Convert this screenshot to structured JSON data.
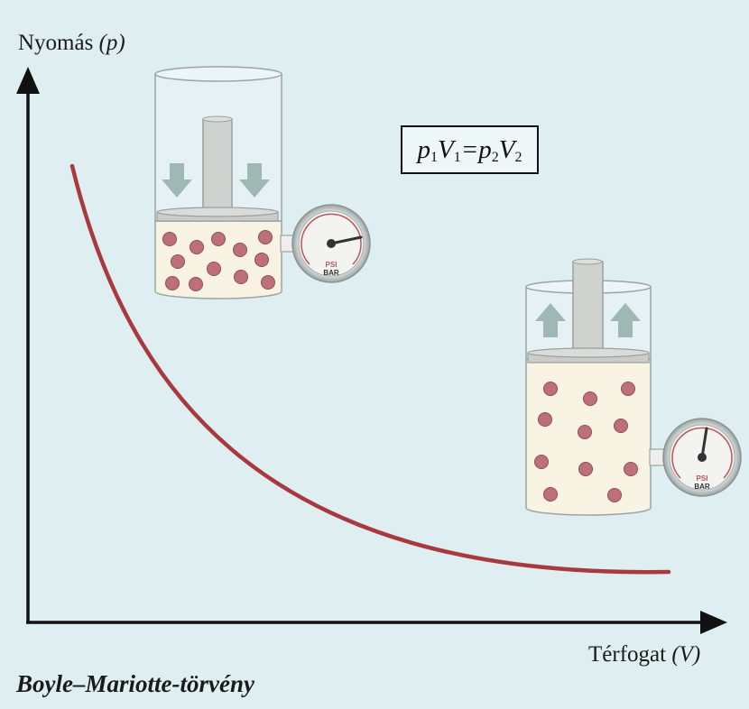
{
  "y_axis_label": {
    "text": "Nyomás",
    "var": "(p)"
  },
  "x_axis_label": {
    "text": "Térfogat",
    "var": "(V)"
  },
  "title": "Boyle–Mariotte-törvény",
  "formula": {
    "p1": "p",
    "s1": "1",
    "v1": "V",
    "s2": "1",
    "eq": "=",
    "p2": "p",
    "s3": "2",
    "v2": "V",
    "s4": "2"
  },
  "gauge_labels": {
    "unit1": "PSI",
    "unit2": "BAR"
  },
  "colors": {
    "background": "#dfeff1",
    "curve": "#a83a3f",
    "particle": "#bd7079",
    "gas": "#f8f3e2",
    "arrow": "#9fb8b3"
  },
  "icons": [
    "arrow-down-icon",
    "arrow-up-icon",
    "pressure-gauge-icon"
  ]
}
